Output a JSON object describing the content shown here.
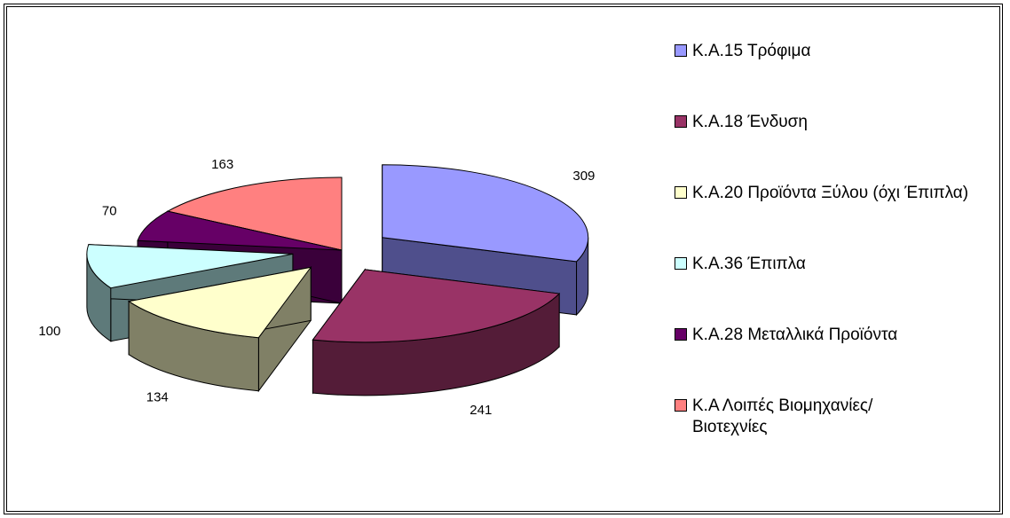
{
  "chart_data": {
    "type": "pie",
    "three_d": true,
    "slices": [
      {
        "label": "Κ.Α.15 Τρόφιμα",
        "value": 309,
        "color": "#9999FF",
        "side": "#4F4F8C",
        "exploded": true
      },
      {
        "label": "Κ.Α.18 Ένδυση",
        "value": 241,
        "color": "#993366",
        "side": "#541C38",
        "exploded": true
      },
      {
        "label": "Κ.Α.20 Προϊόντα Ξύλου (όχι Έπιπλα)",
        "value": 134,
        "color": "#FFFFCC",
        "side": "#808066",
        "exploded": true
      },
      {
        "label": "Κ.Α.36 Έπιπλα",
        "value": 100,
        "color": "#CCFFFF",
        "side": "#5E7A7A",
        "exploded": true
      },
      {
        "label": "Κ.Α.28 Μεταλλικά Προϊόντα",
        "value": 70,
        "color": "#660066",
        "side": "#3A003A",
        "exploded": false
      },
      {
        "label": "Κ.Α Λοιπές Βιομηχανίες/Βιοτεχνίες",
        "value": 163,
        "color": "#FF8080",
        "side": "#8C4040",
        "exploded": false
      }
    ],
    "legend_position": "right"
  }
}
